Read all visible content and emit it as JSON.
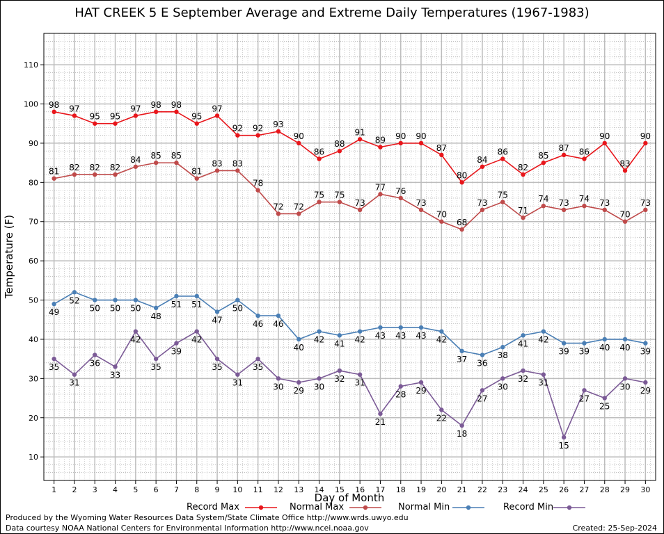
{
  "chart_data": {
    "type": "line",
    "title": "HAT CREEK 5 E September Average and Extreme Daily Temperatures (1967-1983)",
    "xlabel": "Day of Month",
    "ylabel": "Temperature (F)",
    "x": [
      1,
      2,
      3,
      4,
      5,
      6,
      7,
      8,
      9,
      10,
      11,
      12,
      13,
      14,
      15,
      16,
      17,
      18,
      19,
      20,
      21,
      22,
      23,
      24,
      25,
      26,
      27,
      28,
      29,
      30
    ],
    "xlim": [
      0.5,
      30.5
    ],
    "ylim": [
      4,
      118
    ],
    "yticks": [
      10,
      20,
      30,
      40,
      50,
      60,
      70,
      80,
      90,
      100,
      110
    ],
    "grid": true,
    "legend": "bottom",
    "series": [
      {
        "name": "Record Max",
        "color": "#e8161b",
        "values": [
          98,
          97,
          95,
          95,
          97,
          98,
          98,
          95,
          97,
          92,
          92,
          93,
          90,
          86,
          88,
          91,
          89,
          90,
          90,
          87,
          80,
          84,
          86,
          82,
          85,
          87,
          86,
          90,
          83,
          90
        ]
      },
      {
        "name": "Normal Max",
        "color": "#bf4a4a",
        "values": [
          81,
          82,
          82,
          82,
          84,
          85,
          85,
          81,
          83,
          83,
          78,
          72,
          72,
          75,
          75,
          73,
          77,
          76,
          73,
          70,
          68,
          73,
          75,
          71,
          74,
          73,
          74,
          73,
          70,
          73
        ]
      },
      {
        "name": "Normal Min",
        "color": "#4a7fb5",
        "values": [
          49,
          52,
          50,
          50,
          50,
          48,
          51,
          51,
          47,
          50,
          46,
          46,
          40,
          42,
          41,
          42,
          43,
          43,
          43,
          42,
          37,
          36,
          38,
          41,
          42,
          39,
          39,
          40,
          40,
          39
        ]
      },
      {
        "name": "Record Min",
        "color": "#7b5a96",
        "values": [
          35,
          31,
          36,
          33,
          42,
          35,
          39,
          42,
          35,
          31,
          35,
          30,
          29,
          30,
          32,
          31,
          21,
          28,
          29,
          22,
          18,
          27,
          30,
          32,
          31,
          15,
          27,
          25,
          30,
          29
        ]
      }
    ]
  },
  "footer": {
    "produced_by": "Produced by the Wyoming Water Resources Data System/State Climate Office http://www.wrds.uwyo.edu",
    "courtesy": "Data courtesy NOAA National Centers for Environmental Information http://www.ncei.noaa.gov",
    "created": "Created:  25-Sep-2024"
  }
}
